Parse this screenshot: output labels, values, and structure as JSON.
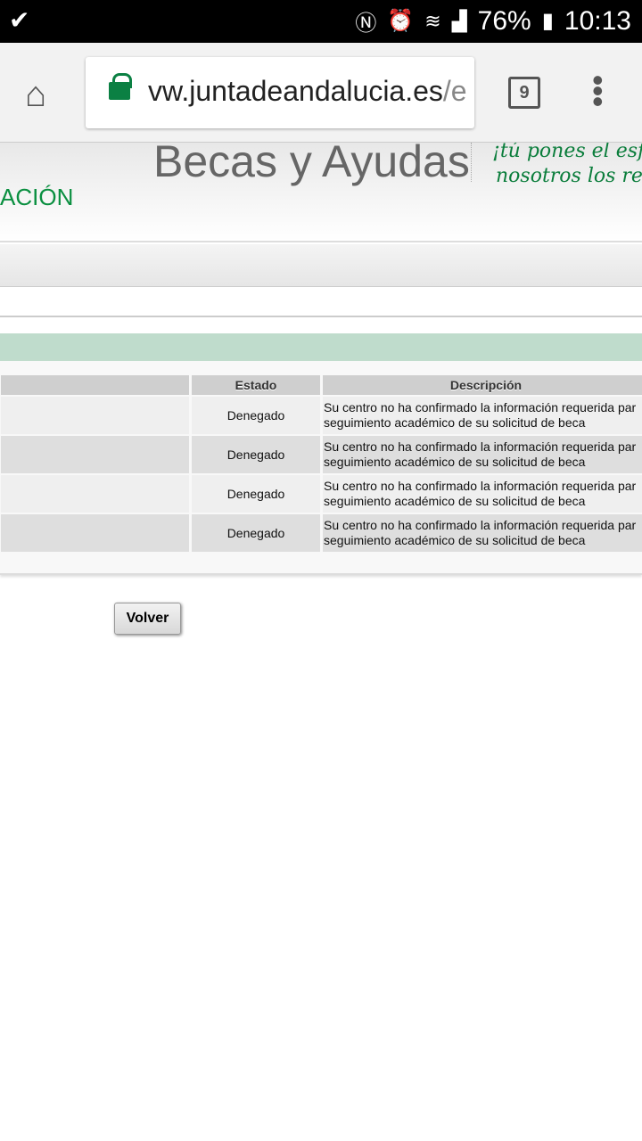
{
  "status_bar": {
    "battery": "76%",
    "time": "10:13"
  },
  "browser": {
    "url_main": "vw.juntadeandalucia.es",
    "url_dim": "/e",
    "tab_count": "9"
  },
  "header": {
    "title": "Becas y Ayudas",
    "slogan_line1": "¡tú pones el esfue",
    "slogan_line2": "nosotros los recu",
    "department": "ACIÓN"
  },
  "table": {
    "columns": [
      "",
      "Estado",
      "Descripción"
    ],
    "rows": [
      {
        "estado": "Denegado",
        "desc1": "Su centro no ha confirmado la información requerida par",
        "desc2": "seguimiento académico de su solicitud de beca"
      },
      {
        "estado": "Denegado",
        "desc1": "Su centro no ha confirmado la información requerida par",
        "desc2": "seguimiento académico de su solicitud de beca"
      },
      {
        "estado": "Denegado",
        "desc1": "Su centro no ha confirmado la información requerida par",
        "desc2": "seguimiento académico de su solicitud de beca"
      },
      {
        "estado": "Denegado",
        "desc1": "Su centro no ha confirmado la información requerida par",
        "desc2": "seguimiento académico de su solicitud de beca"
      }
    ]
  },
  "actions": {
    "volver": "Volver"
  }
}
